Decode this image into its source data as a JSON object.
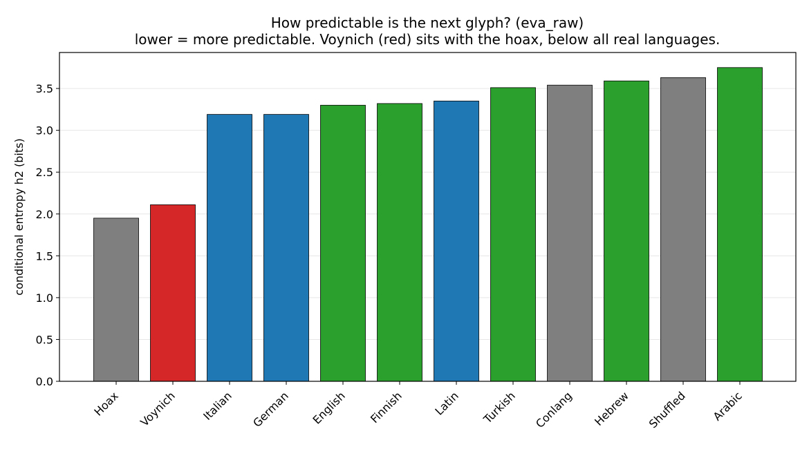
{
  "chart_data": {
    "type": "bar",
    "title": "How predictable is the next glyph? (eva_raw)",
    "subtitle": "lower = more predictable. Voynich (red) sits with the hoax, below all real languages.",
    "xlabel": "",
    "ylabel": "conditional entropy h2 (bits)",
    "ylim": [
      0,
      3.93
    ],
    "yticks": [
      0.0,
      0.5,
      1.0,
      1.5,
      2.0,
      2.5,
      3.0,
      3.5
    ],
    "ytick_labels": [
      "0.0",
      "0.5",
      "1.0",
      "1.5",
      "2.0",
      "2.5",
      "3.0",
      "3.5"
    ],
    "grid": "horizontal",
    "categories": [
      "Hoax",
      "Voynich",
      "Italian",
      "German",
      "English",
      "Finnish",
      "Latin",
      "Turkish",
      "Conlang",
      "Hebrew",
      "Shuffled",
      "Arabic"
    ],
    "values": [
      1.95,
      2.11,
      3.19,
      3.19,
      3.3,
      3.32,
      3.35,
      3.51,
      3.54,
      3.59,
      3.63,
      3.75
    ],
    "colors": [
      "#7f7f7f",
      "#d62728",
      "#1f77b4",
      "#1f77b4",
      "#2ca02c",
      "#2ca02c",
      "#1f77b4",
      "#2ca02c",
      "#7f7f7f",
      "#2ca02c",
      "#7f7f7f",
      "#2ca02c"
    ]
  }
}
